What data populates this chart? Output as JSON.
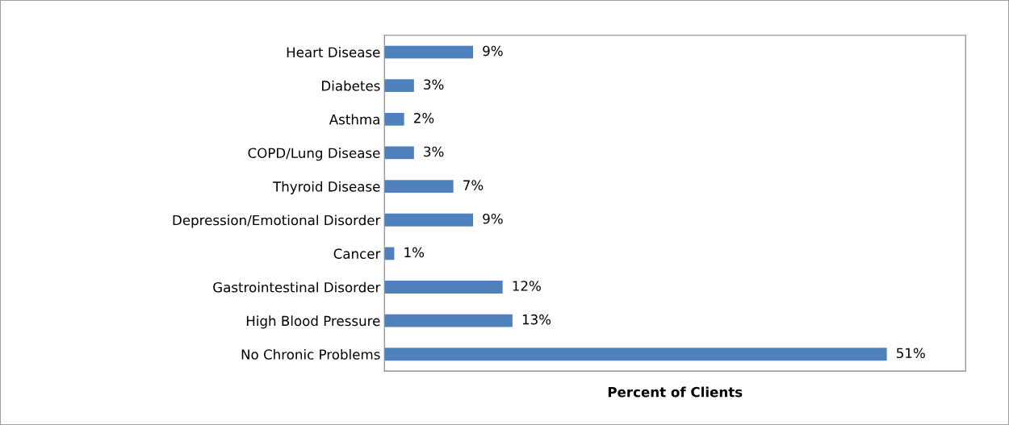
{
  "chart_data": {
    "type": "bar",
    "orientation": "horizontal",
    "xlabel": "Percent of Clients",
    "categories": [
      "Heart Disease",
      "Diabetes",
      "Asthma",
      "COPD/Lung Disease",
      "Thyroid Disease",
      "Depression/Emotional Disorder",
      "Cancer",
      "Gastrointestinal Disorder",
      "High Blood Pressure",
      "No Chronic Problems"
    ],
    "values": [
      9,
      3,
      2,
      3,
      7,
      9,
      1,
      12,
      13,
      51
    ],
    "value_labels": [
      "9%",
      "3%",
      "2%",
      "3%",
      "7%",
      "9%",
      "1%",
      "12%",
      "13%",
      "51%"
    ],
    "color": "#4f81bd",
    "xlim": [
      0,
      59
    ],
    "tick_labels": "y",
    "grid": false,
    "legend": false
  }
}
